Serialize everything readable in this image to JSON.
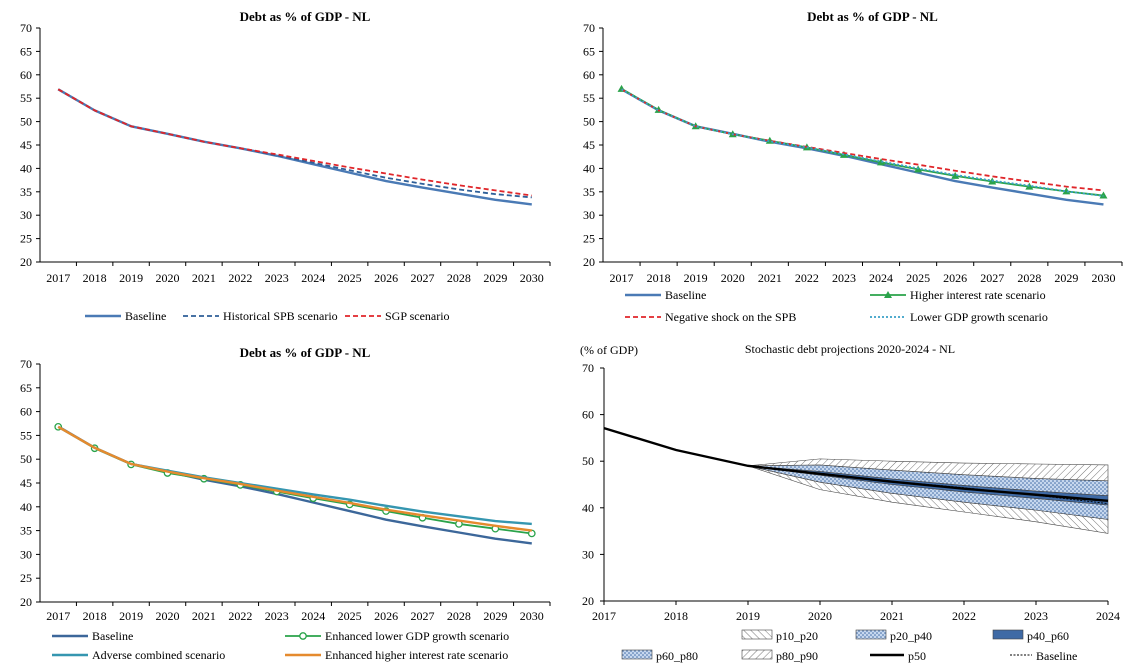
{
  "chart_data": [
    {
      "type": "line",
      "title": "Debt as % of GDP - NL",
      "x": [
        "2017",
        "2018",
        "2019",
        "2020",
        "2021",
        "2022",
        "2023",
        "2024",
        "2025",
        "2026",
        "2027",
        "2028",
        "2029",
        "2030"
      ],
      "ylim": [
        20,
        70
      ],
      "yticks": [
        20,
        25,
        30,
        35,
        40,
        45,
        50,
        55,
        60,
        65,
        70
      ],
      "series": [
        {
          "name": "Baseline",
          "color": "#4a7ab5",
          "style": "solid",
          "values": [
            56.9,
            52.4,
            49.0,
            47.4,
            45.7,
            44.3,
            42.7,
            40.9,
            39.1,
            37.3,
            35.9,
            34.6,
            33.3,
            32.3
          ]
        },
        {
          "name": "Historical SPB scenario",
          "color": "#2e5f98",
          "style": "dashed",
          "values": [
            56.9,
            52.4,
            49.0,
            47.4,
            45.7,
            44.3,
            42.8,
            41.2,
            39.6,
            38.0,
            36.7,
            35.5,
            34.5,
            33.8
          ]
        },
        {
          "name": "SGP scenario",
          "color": "#e0262a",
          "style": "dashed",
          "values": [
            56.9,
            52.4,
            49.0,
            47.4,
            45.7,
            44.3,
            43.0,
            41.6,
            40.2,
            38.9,
            37.6,
            36.4,
            35.3,
            34.2
          ]
        }
      ]
    },
    {
      "type": "line",
      "title": "Debt as % of GDP - NL",
      "x": [
        "2017",
        "2018",
        "2019",
        "2020",
        "2021",
        "2022",
        "2023",
        "2024",
        "2025",
        "2026",
        "2027",
        "2028",
        "2029",
        "2030"
      ],
      "ylim": [
        20,
        70
      ],
      "yticks": [
        20,
        25,
        30,
        35,
        40,
        45,
        50,
        55,
        60,
        65,
        70
      ],
      "series": [
        {
          "name": "Baseline",
          "color": "#4a7ab5",
          "style": "solid",
          "values": [
            56.9,
            52.4,
            49.0,
            47.4,
            45.7,
            44.3,
            42.7,
            40.9,
            39.1,
            37.3,
            35.9,
            34.6,
            33.3,
            32.3
          ]
        },
        {
          "name": "Higher interest rate scenario",
          "color": "#2aa34a",
          "style": "marker",
          "values": [
            57.0,
            52.5,
            49.0,
            47.3,
            45.9,
            44.5,
            42.9,
            41.3,
            39.8,
            38.4,
            37.2,
            36.1,
            35.1,
            34.2
          ]
        },
        {
          "name": "Negative shock on the SPB",
          "color": "#e0262a",
          "style": "dashed",
          "values": [
            56.9,
            52.4,
            49.0,
            47.3,
            45.9,
            44.6,
            43.3,
            42.0,
            40.8,
            39.5,
            38.3,
            37.2,
            36.1,
            35.3
          ]
        },
        {
          "name": "Lower GDP growth scenario",
          "color": "#3aa0c8",
          "style": "dotted",
          "values": [
            56.9,
            52.4,
            49.0,
            47.3,
            45.8,
            44.5,
            43.0,
            41.5,
            40.0,
            38.6,
            37.4,
            36.3,
            35.1,
            34.1
          ]
        }
      ]
    },
    {
      "type": "line",
      "title": "Debt as % of GDP - NL",
      "x": [
        "2017",
        "2018",
        "2019",
        "2020",
        "2021",
        "2022",
        "2023",
        "2024",
        "2025",
        "2026",
        "2027",
        "2028",
        "2029",
        "2030"
      ],
      "ylim": [
        20,
        70
      ],
      "yticks": [
        20,
        25,
        30,
        35,
        40,
        45,
        50,
        55,
        60,
        65,
        70
      ],
      "series": [
        {
          "name": "Baseline",
          "color": "#3c679a",
          "style": "solid",
          "values": [
            56.9,
            52.4,
            49.0,
            47.4,
            45.7,
            44.3,
            42.7,
            40.9,
            39.1,
            37.3,
            35.9,
            34.6,
            33.3,
            32.3
          ]
        },
        {
          "name": "Enhanced lower GDP growth scenario",
          "color": "#2aa34a",
          "style": "circle",
          "values": [
            56.8,
            52.3,
            48.9,
            47.1,
            45.9,
            44.6,
            43.2,
            41.8,
            40.5,
            39.1,
            37.7,
            36.4,
            35.4,
            34.4
          ]
        },
        {
          "name": "Adverse combined scenario",
          "color": "#3596b0",
          "style": "solid",
          "values": [
            56.8,
            52.4,
            49.0,
            47.6,
            46.2,
            45.0,
            43.8,
            42.6,
            41.5,
            40.2,
            39.0,
            38.0,
            37.0,
            36.4
          ]
        },
        {
          "name": "Enhanced higher interest rate scenario",
          "color": "#e58a2e",
          "style": "solid",
          "values": [
            56.8,
            52.4,
            49.0,
            47.4,
            46.0,
            44.8,
            43.4,
            42.1,
            40.8,
            39.4,
            38.2,
            37.1,
            36.0,
            35.0
          ]
        }
      ]
    },
    {
      "type": "area",
      "title": "Stochastic debt projections  2020-2024 - NL",
      "unit_label": "(% of GDP)",
      "x": [
        "2017",
        "2018",
        "2019",
        "2020",
        "2021",
        "2022",
        "2023",
        "2024"
      ],
      "ylim": [
        20,
        70
      ],
      "yticks": [
        20,
        30,
        40,
        50,
        60,
        70
      ],
      "bands": [
        {
          "name": "p10_p20",
          "lower": [
            null,
            null,
            49.0,
            43.9,
            41.2,
            39.1,
            37.0,
            34.5
          ],
          "upper": [
            null,
            null,
            49.0,
            45.5,
            43.1,
            41.2,
            39.5,
            37.5
          ]
        },
        {
          "name": "p20_p40",
          "lower": [
            null,
            null,
            49.0,
            45.5,
            43.1,
            41.2,
            39.5,
            37.5
          ],
          "upper": [
            null,
            null,
            49.0,
            47.0,
            45.0,
            43.4,
            42.0,
            40.6
          ]
        },
        {
          "name": "p40_p60",
          "lower": [
            null,
            null,
            49.0,
            47.0,
            45.0,
            43.4,
            42.0,
            40.6
          ],
          "upper": [
            null,
            null,
            49.0,
            47.8,
            46.2,
            44.8,
            43.6,
            42.6
          ]
        },
        {
          "name": "p60_p80",
          "lower": [
            null,
            null,
            49.0,
            47.8,
            46.2,
            44.8,
            43.6,
            42.6
          ],
          "upper": [
            null,
            null,
            49.0,
            49.2,
            48.1,
            47.1,
            46.3,
            45.8
          ]
        },
        {
          "name": "p80_p90",
          "lower": [
            null,
            null,
            49.0,
            49.2,
            48.1,
            47.1,
            46.3,
            45.8
          ],
          "upper": [
            null,
            null,
            49.0,
            50.5,
            50.0,
            49.6,
            49.4,
            49.2
          ]
        }
      ],
      "series": [
        {
          "name": "p50",
          "values": [
            57.1,
            52.4,
            49.0,
            47.3,
            45.6,
            44.1,
            42.8,
            41.5
          ]
        },
        {
          "name": "Baseline",
          "values": [
            57.1,
            52.4,
            49.0,
            47.4,
            45.7,
            44.3,
            42.7,
            40.9
          ]
        }
      ]
    }
  ]
}
